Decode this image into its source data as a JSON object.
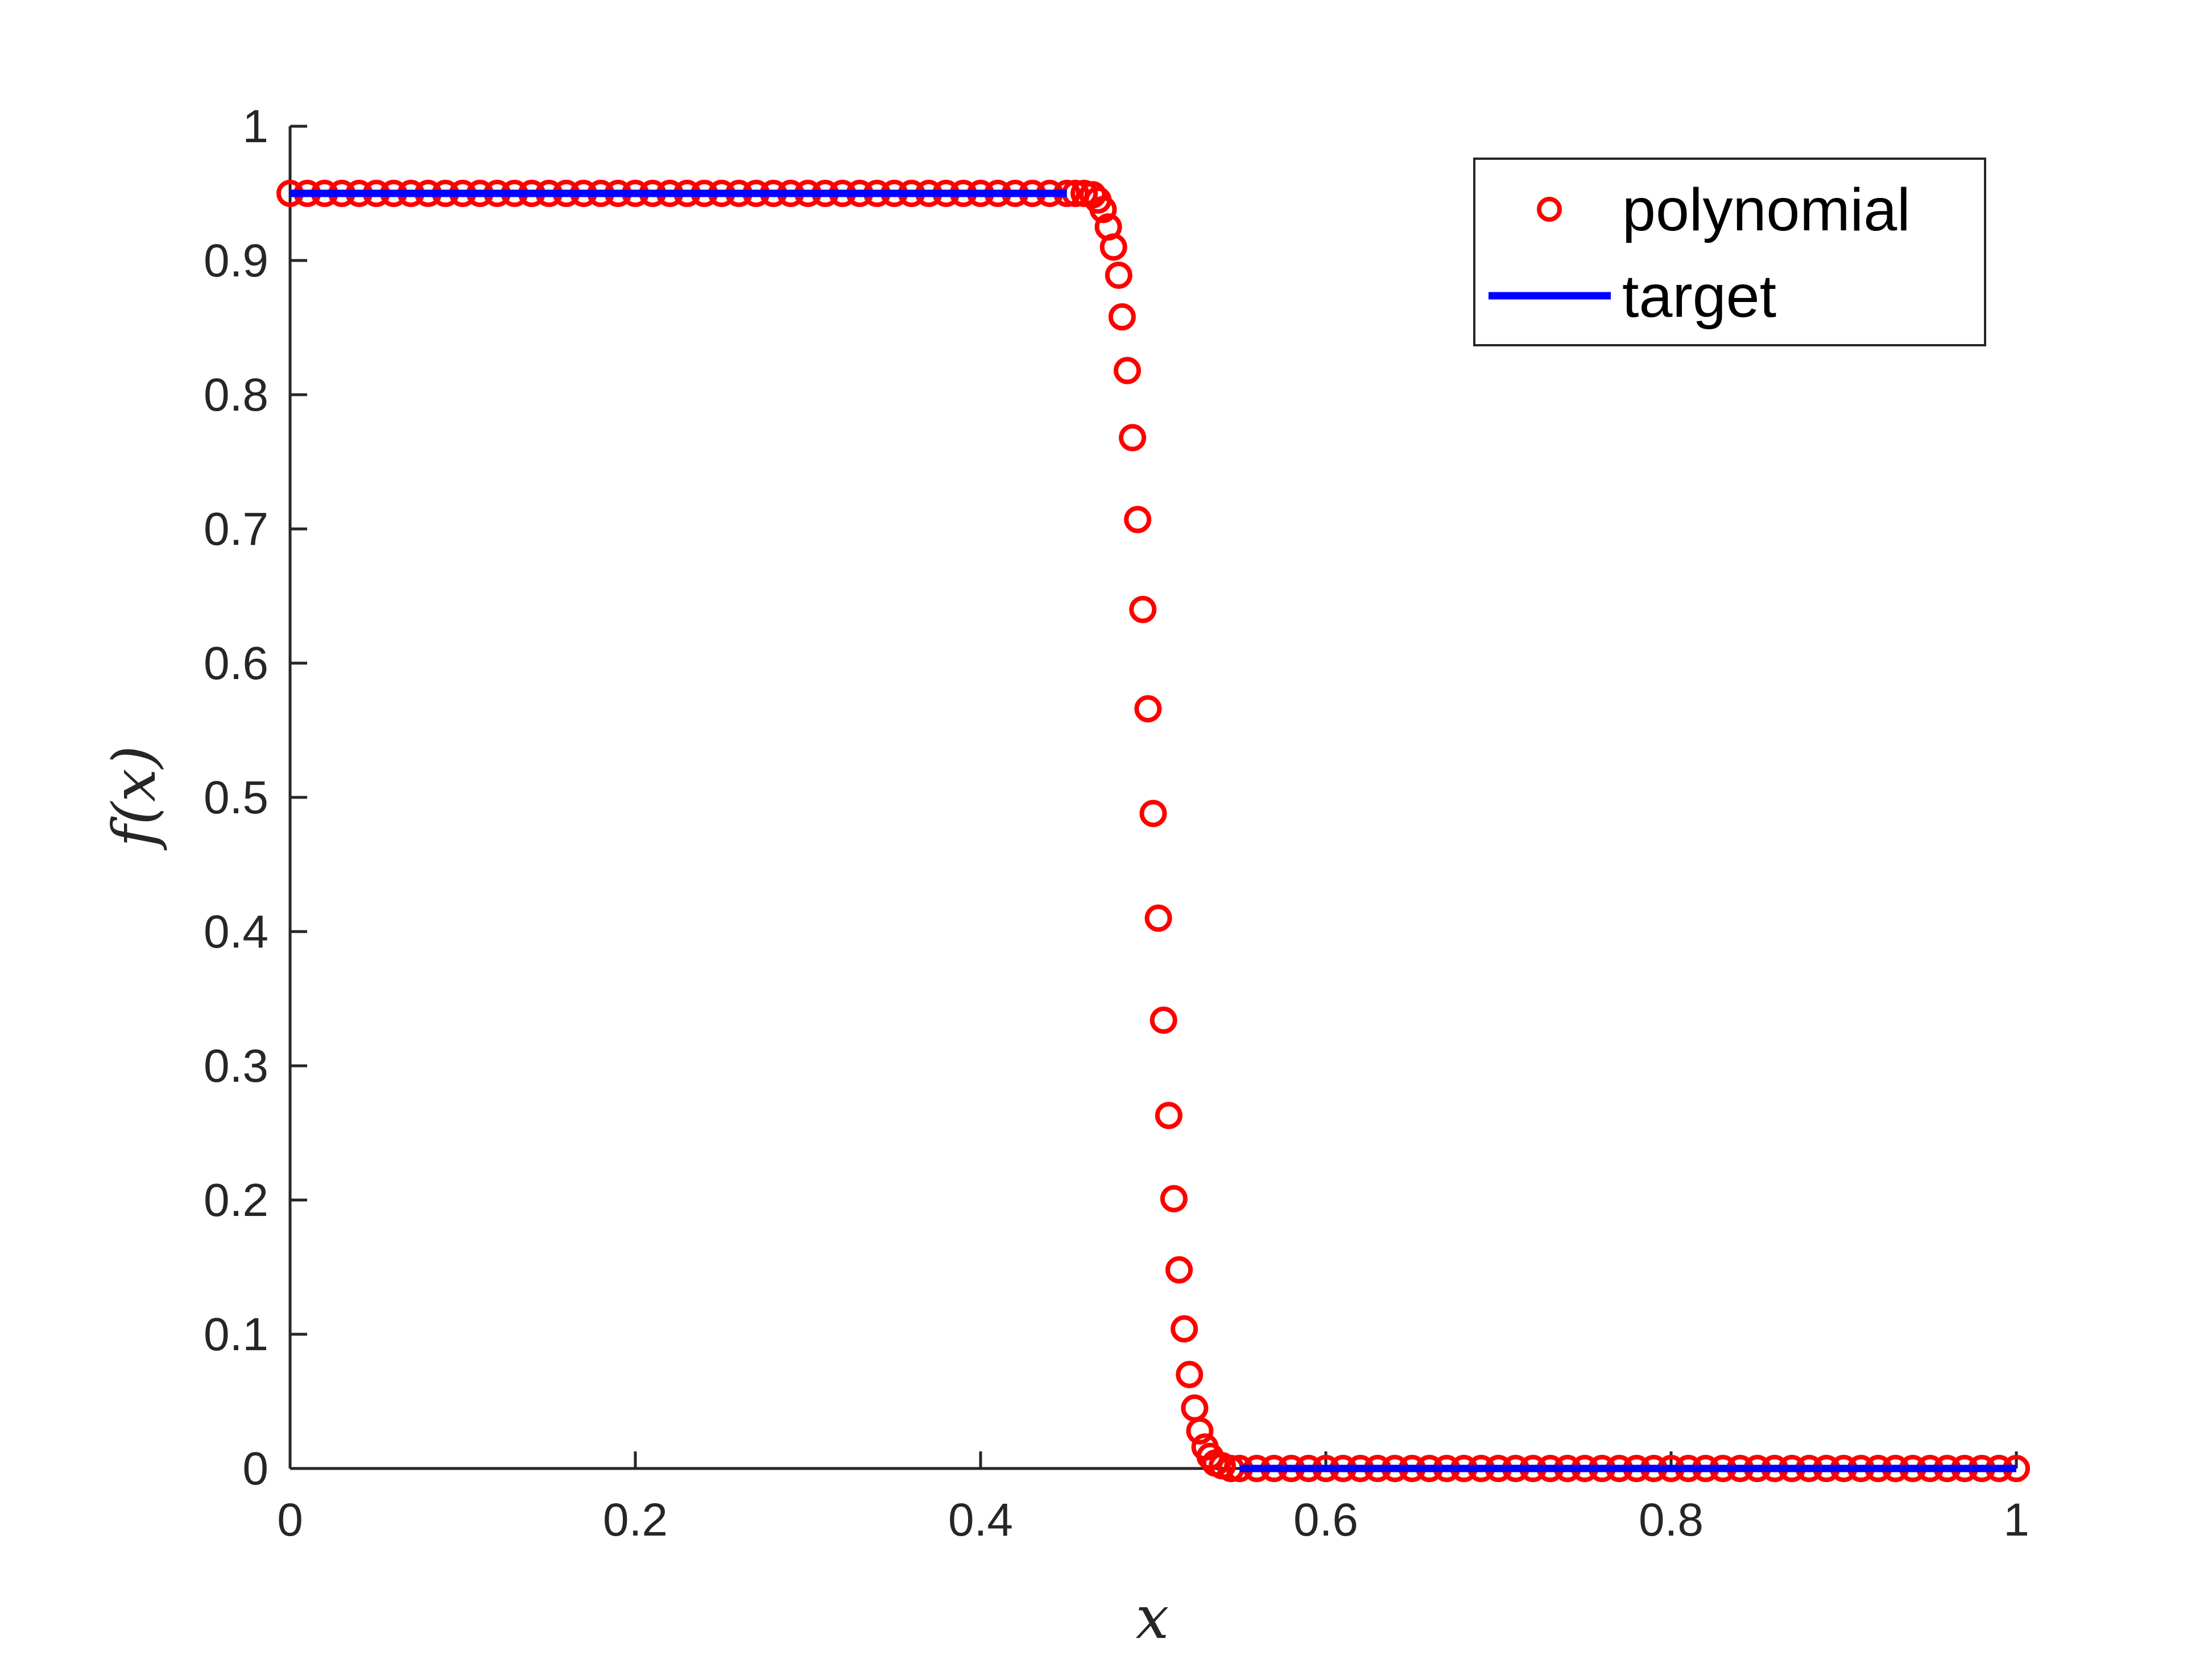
{
  "chart_data": {
    "type": "scatter",
    "xlabel": "x",
    "ylabel": "f(x)",
    "xlim": [
      0,
      1
    ],
    "ylim": [
      0,
      1
    ],
    "xticks": [
      0,
      0.2,
      0.4,
      0.6,
      0.8,
      1
    ],
    "xtick_labels": [
      "0",
      "0.2",
      "0.4",
      "0.6",
      "0.8",
      "1"
    ],
    "yticks": [
      0,
      0.1,
      0.2,
      0.3,
      0.4,
      0.5,
      0.6,
      0.7,
      0.8,
      0.9,
      1
    ],
    "ytick_labels": [
      "0",
      "0.1",
      "0.2",
      "0.3",
      "0.4",
      "0.5",
      "0.6",
      "0.7",
      "0.8",
      "0.9",
      "1"
    ],
    "grid": false,
    "legend_position": "top-right",
    "series": [
      {
        "name": "polynomial",
        "kind": "scatter",
        "marker": "circle-open",
        "color": "#ff0000",
        "points": [
          [
            0.0,
            0.95
          ],
          [
            0.01,
            0.95
          ],
          [
            0.02,
            0.95
          ],
          [
            0.03,
            0.95
          ],
          [
            0.04,
            0.95
          ],
          [
            0.05,
            0.95
          ],
          [
            0.06,
            0.95
          ],
          [
            0.07,
            0.95
          ],
          [
            0.08,
            0.95
          ],
          [
            0.09,
            0.95
          ],
          [
            0.1,
            0.95
          ],
          [
            0.11,
            0.95
          ],
          [
            0.12,
            0.95
          ],
          [
            0.13,
            0.95
          ],
          [
            0.14,
            0.95
          ],
          [
            0.15,
            0.95
          ],
          [
            0.16,
            0.95
          ],
          [
            0.17,
            0.95
          ],
          [
            0.18,
            0.95
          ],
          [
            0.19,
            0.95
          ],
          [
            0.2,
            0.95
          ],
          [
            0.21,
            0.95
          ],
          [
            0.22,
            0.95
          ],
          [
            0.23,
            0.95
          ],
          [
            0.24,
            0.95
          ],
          [
            0.25,
            0.95
          ],
          [
            0.26,
            0.95
          ],
          [
            0.27,
            0.95
          ],
          [
            0.28,
            0.95
          ],
          [
            0.29,
            0.95
          ],
          [
            0.3,
            0.95
          ],
          [
            0.31,
            0.95
          ],
          [
            0.32,
            0.95
          ],
          [
            0.33,
            0.95
          ],
          [
            0.34,
            0.95
          ],
          [
            0.35,
            0.95
          ],
          [
            0.36,
            0.95
          ],
          [
            0.37,
            0.95
          ],
          [
            0.38,
            0.95
          ],
          [
            0.39,
            0.95
          ],
          [
            0.4,
            0.95
          ],
          [
            0.41,
            0.95
          ],
          [
            0.42,
            0.95
          ],
          [
            0.43,
            0.95
          ],
          [
            0.44,
            0.95
          ],
          [
            0.45,
            0.95
          ],
          [
            0.455,
            0.95
          ],
          [
            0.46,
            0.95
          ],
          [
            0.465,
            0.949
          ],
          [
            0.468,
            0.945
          ],
          [
            0.471,
            0.938
          ],
          [
            0.474,
            0.925
          ],
          [
            0.477,
            0.91
          ],
          [
            0.48,
            0.889
          ],
          [
            0.482,
            0.858
          ],
          [
            0.485,
            0.818
          ],
          [
            0.488,
            0.768
          ],
          [
            0.491,
            0.707
          ],
          [
            0.494,
            0.64
          ],
          [
            0.497,
            0.566
          ],
          [
            0.5,
            0.488
          ],
          [
            0.503,
            0.41
          ],
          [
            0.506,
            0.334
          ],
          [
            0.509,
            0.263
          ],
          [
            0.512,
            0.201
          ],
          [
            0.515,
            0.148
          ],
          [
            0.518,
            0.104
          ],
          [
            0.521,
            0.07
          ],
          [
            0.524,
            0.045
          ],
          [
            0.527,
            0.028
          ],
          [
            0.53,
            0.016
          ],
          [
            0.533,
            0.009
          ],
          [
            0.536,
            0.004
          ],
          [
            0.54,
            0.002
          ],
          [
            0.545,
            0.0
          ],
          [
            0.55,
            0.0
          ],
          [
            0.56,
            0.0
          ],
          [
            0.57,
            0.0
          ],
          [
            0.58,
            0.0
          ],
          [
            0.59,
            0.0
          ],
          [
            0.6,
            0.0
          ],
          [
            0.61,
            0.0
          ],
          [
            0.62,
            0.0
          ],
          [
            0.63,
            0.0
          ],
          [
            0.64,
            0.0
          ],
          [
            0.65,
            0.0
          ],
          [
            0.66,
            0.0
          ],
          [
            0.67,
            0.0
          ],
          [
            0.68,
            0.0
          ],
          [
            0.69,
            0.0
          ],
          [
            0.7,
            0.0
          ],
          [
            0.71,
            0.0
          ],
          [
            0.72,
            0.0
          ],
          [
            0.73,
            0.0
          ],
          [
            0.74,
            0.0
          ],
          [
            0.75,
            0.0
          ],
          [
            0.76,
            0.0
          ],
          [
            0.77,
            0.0
          ],
          [
            0.78,
            0.0
          ],
          [
            0.79,
            0.0
          ],
          [
            0.8,
            0.0
          ],
          [
            0.81,
            0.0
          ],
          [
            0.82,
            0.0
          ],
          [
            0.83,
            0.0
          ],
          [
            0.84,
            0.0
          ],
          [
            0.85,
            0.0
          ],
          [
            0.86,
            0.0
          ],
          [
            0.87,
            0.0
          ],
          [
            0.88,
            0.0
          ],
          [
            0.89,
            0.0
          ],
          [
            0.9,
            0.0
          ],
          [
            0.91,
            0.0
          ],
          [
            0.92,
            0.0
          ],
          [
            0.93,
            0.0
          ],
          [
            0.94,
            0.0
          ],
          [
            0.95,
            0.0
          ],
          [
            0.96,
            0.0
          ],
          [
            0.97,
            0.0
          ],
          [
            0.98,
            0.0
          ],
          [
            0.99,
            0.0
          ],
          [
            1.0,
            0.0
          ]
        ]
      },
      {
        "name": "target",
        "kind": "line",
        "color": "#0000ff",
        "segments": [
          [
            [
              0.0,
              0.95
            ],
            [
              0.45,
              0.95
            ]
          ],
          [
            [
              0.55,
              0.0
            ],
            [
              1.0,
              0.0
            ]
          ]
        ]
      }
    ]
  }
}
